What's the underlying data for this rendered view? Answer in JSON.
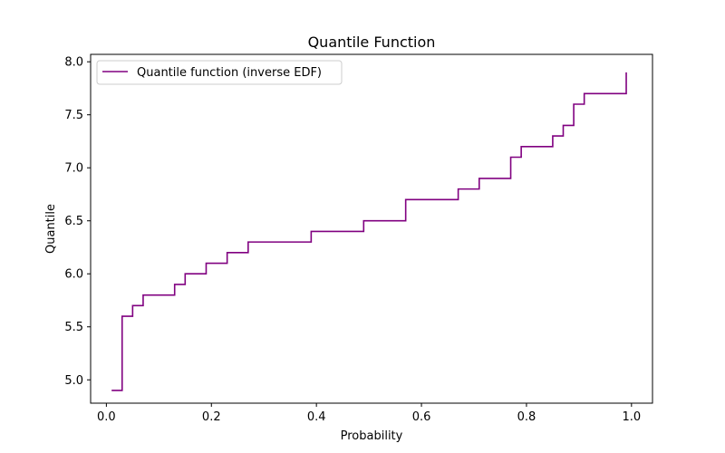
{
  "chart_data": {
    "type": "line",
    "step": true,
    "title": "Quantile Function",
    "xlabel": "Probability",
    "ylabel": "Quantile",
    "xlim": [
      -0.03,
      1.04
    ],
    "ylim": [
      4.78,
      8.07
    ],
    "xticks": [
      0.0,
      0.2,
      0.4,
      0.6,
      0.8,
      1.0
    ],
    "xtick_labels": [
      "0.0",
      "0.2",
      "0.4",
      "0.6",
      "0.8",
      "1.0"
    ],
    "yticks": [
      5.0,
      5.5,
      6.0,
      6.5,
      7.0,
      7.5,
      8.0
    ],
    "ytick_labels": [
      "5.0",
      "5.5",
      "6.0",
      "6.5",
      "7.0",
      "7.5",
      "8.0"
    ],
    "grid": false,
    "legend_position": "upper-left",
    "series": [
      {
        "name": "Quantile function (inverse EDF)",
        "color": "#800080",
        "x": [
          0.01,
          0.03,
          0.05,
          0.07,
          0.13,
          0.15,
          0.19,
          0.23,
          0.27,
          0.39,
          0.49,
          0.57,
          0.67,
          0.71,
          0.77,
          0.79,
          0.85,
          0.87,
          0.89,
          0.91,
          0.99
        ],
        "y": [
          4.9,
          5.6,
          5.7,
          5.8,
          5.9,
          6.0,
          6.1,
          6.2,
          6.3,
          6.4,
          6.5,
          6.7,
          6.8,
          6.9,
          7.1,
          7.2,
          7.3,
          7.4,
          7.6,
          7.7,
          7.9
        ]
      }
    ]
  }
}
